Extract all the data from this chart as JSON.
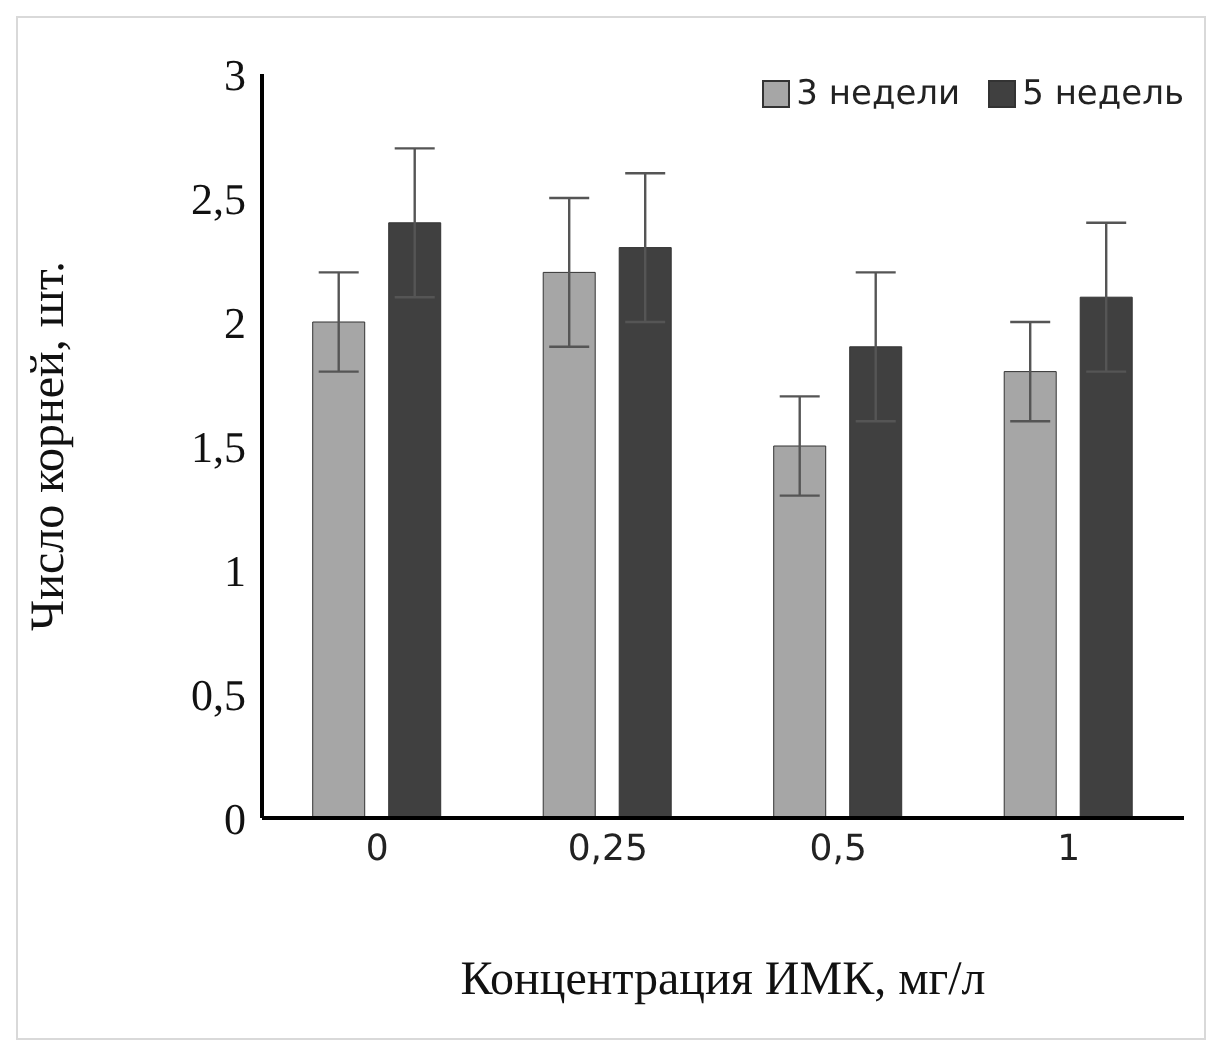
{
  "chart_data": {
    "type": "bar",
    "ylabel": "Число корней, шт.",
    "xlabel": "Концентрация ИМК, мг/л",
    "categories": [
      "0",
      "0,25",
      "0,5",
      "1"
    ],
    "series": [
      {
        "name": "3 недели",
        "color": "#a6a6a6",
        "values": [
          2.0,
          2.2,
          1.5,
          1.8
        ],
        "errors": [
          0.2,
          0.3,
          0.2,
          0.2
        ]
      },
      {
        "name": "5 недель",
        "color": "#404040",
        "values": [
          2.4,
          2.3,
          1.9,
          2.1
        ],
        "errors": [
          0.3,
          0.3,
          0.3,
          0.3
        ]
      }
    ],
    "ylim": [
      0,
      3
    ],
    "yticks": [
      0,
      {
        "value": 0.5,
        "label": "0,5"
      },
      1,
      {
        "value": 1.5,
        "label": "1,5"
      },
      2,
      {
        "value": 2.5,
        "label": "2,5"
      },
      3
    ],
    "grid": false,
    "legend": "top right"
  }
}
